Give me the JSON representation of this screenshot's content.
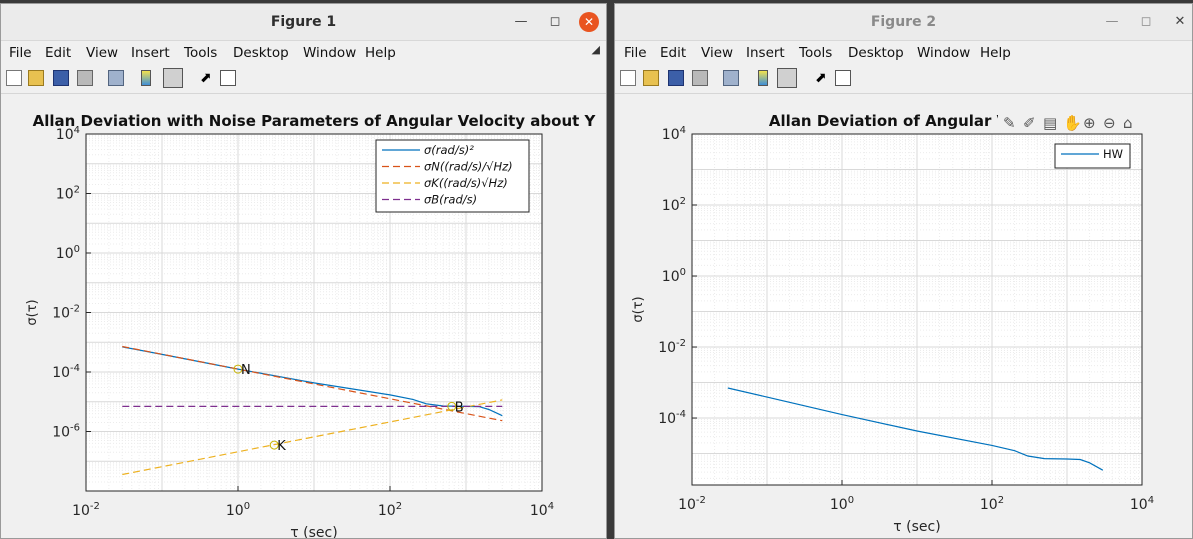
{
  "windows": [
    {
      "title": "Figure 1",
      "menu": [
        "File",
        "Edit",
        "View",
        "Insert",
        "Tools",
        "Desktop",
        "Window",
        "Help"
      ]
    },
    {
      "title": "Figure 2",
      "menu": [
        "File",
        "Edit",
        "View",
        "Insert",
        "Tools",
        "Desktop",
        "Window",
        "Help"
      ]
    }
  ],
  "icons": [
    "new-figure-icon",
    "open-icon",
    "save-icon",
    "print-icon",
    "link-icon",
    "colorbar-icon",
    "legend-icon",
    "pointer-icon",
    "property-editor-icon",
    "brush-icon",
    "data-tip-icon",
    "export-icon",
    "pan-icon",
    "zoom-in-icon",
    "zoom-out-icon",
    "home-icon"
  ],
  "chart_data": [
    {
      "type": "line",
      "title": "Allan Deviation with Noise Parameters of Angular Velocity about Y",
      "xlabel": "τ (sec)",
      "ylabel": "σ(τ)",
      "xscale": "log",
      "yscale": "log",
      "xlim": [
        0.01,
        10000
      ],
      "ylim": [
        1e-08,
        10000
      ],
      "xticks": [
        "10-2",
        "100",
        "102",
        "104"
      ],
      "yticks": [
        "10-6",
        "10-4",
        "10-2",
        "100",
        "102",
        "104"
      ],
      "grid": true,
      "legend_position": "top-right",
      "series": [
        {
          "name": "σ(rad/s)²",
          "color": "#0072BD",
          "dash": "solid",
          "x": [
            0.03,
            0.1,
            1,
            10,
            100,
            200,
            300,
            500,
            1000,
            1500,
            2000,
            3000
          ],
          "y": [
            0.0007,
            0.00039,
            0.000125,
            4.3e-05,
            1.7e-05,
            1.2e-05,
            8.5e-06,
            7.2e-06,
            7e-06,
            6.8e-06,
            5.5e-06,
            3.4e-06
          ]
        },
        {
          "name": "σN((rad/s)/√Hz)",
          "color": "#D95319",
          "dash": "dashed",
          "x": [
            0.03,
            3000
          ],
          "y": [
            0.00072,
            2.3e-06
          ]
        },
        {
          "name": "σK((rad/s)√Hz)",
          "color": "#EDB120",
          "dash": "dashed",
          "x": [
            0.03,
            3000
          ],
          "y": [
            3.6e-08,
            1.15e-05
          ]
        },
        {
          "name": "σB(rad/s)",
          "color": "#7E2F8E",
          "dash": "dashed",
          "x": [
            0.03,
            3000
          ],
          "y": [
            7e-06,
            7e-06
          ]
        }
      ],
      "annotations": [
        {
          "label": "N",
          "x": 1,
          "y": 0.000125
        },
        {
          "label": "B",
          "x": 650,
          "y": 7e-06
        },
        {
          "label": "K",
          "x": 3,
          "y": 3.5e-07
        }
      ]
    },
    {
      "type": "line",
      "title": "Allan Deviation of Angular Velo",
      "xlabel": "τ (sec)",
      "ylabel": "σ(τ)",
      "xscale": "log",
      "yscale": "log",
      "xlim": [
        0.01,
        10000
      ],
      "ylim": [
        1.3e-06,
        10000
      ],
      "xticks": [
        "10-2",
        "100",
        "102",
        "104"
      ],
      "yticks": [
        "10-4",
        "10-2",
        "100",
        "102",
        "104"
      ],
      "grid": true,
      "legend_position": "top-right",
      "series": [
        {
          "name": "HW",
          "color": "#0072BD",
          "dash": "solid",
          "x": [
            0.03,
            0.1,
            1,
            10,
            100,
            200,
            300,
            500,
            1000,
            1500,
            2000,
            3000
          ],
          "y": [
            0.0007,
            0.00039,
            0.000125,
            4.3e-05,
            1.7e-05,
            1.2e-05,
            8.5e-06,
            7.2e-06,
            7e-06,
            6.8e-06,
            5.5e-06,
            3.4e-06
          ]
        }
      ]
    }
  ]
}
